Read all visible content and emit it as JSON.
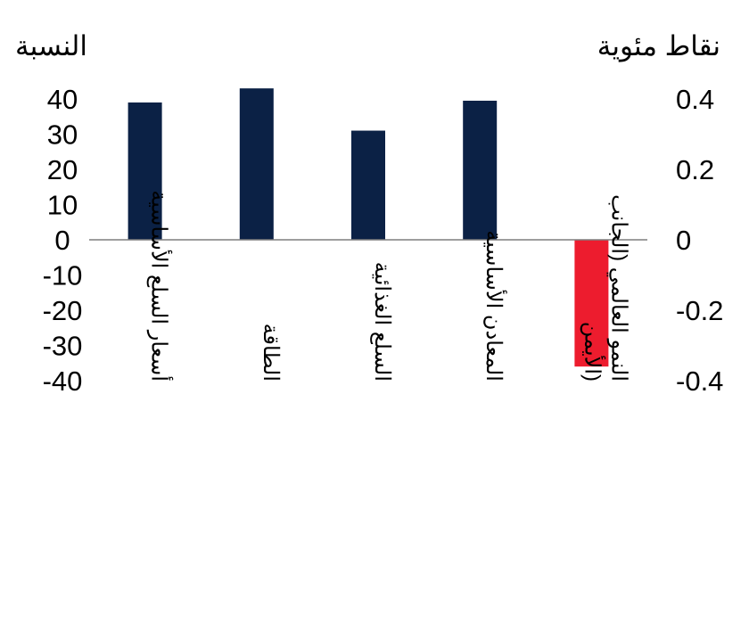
{
  "chart_data": {
    "type": "bar",
    "title": "",
    "left_axis": {
      "label": "النسبة",
      "ylim": [
        -40,
        40
      ],
      "ticks": [
        "40",
        "30",
        "20",
        "10",
        "0",
        "-10",
        "-20",
        "-30",
        "-40"
      ]
    },
    "right_axis": {
      "label": "نقاط مئوية",
      "ylim": [
        -0.4,
        0.4
      ],
      "ticks": [
        "0.4",
        "0.2",
        "0",
        "-0.2",
        "-0.4"
      ]
    },
    "categories": [
      "أسعار السلع الأساسية",
      "الطاقة",
      "السلع الغذائية",
      "المعادن الأساسية",
      "النمو العالمي (الجانب الأيمن)"
    ],
    "category_lines": [
      [
        "أسعار السلع الأساسية"
      ],
      [
        "الطاقة"
      ],
      [
        "السلع الغذائية"
      ],
      [
        "المعادن الأساسية"
      ],
      [
        "النمو العالمي (الجانب",
        "الأيمن)"
      ]
    ],
    "series": [
      {
        "values": [
          39,
          43,
          31,
          39.5,
          null
        ],
        "axis": "left",
        "color": "#0b2145"
      },
      {
        "values": [
          null,
          null,
          null,
          null,
          -0.36
        ],
        "axis": "right",
        "color": "#ed1c2e"
      }
    ],
    "grid": false,
    "legend": "none"
  }
}
